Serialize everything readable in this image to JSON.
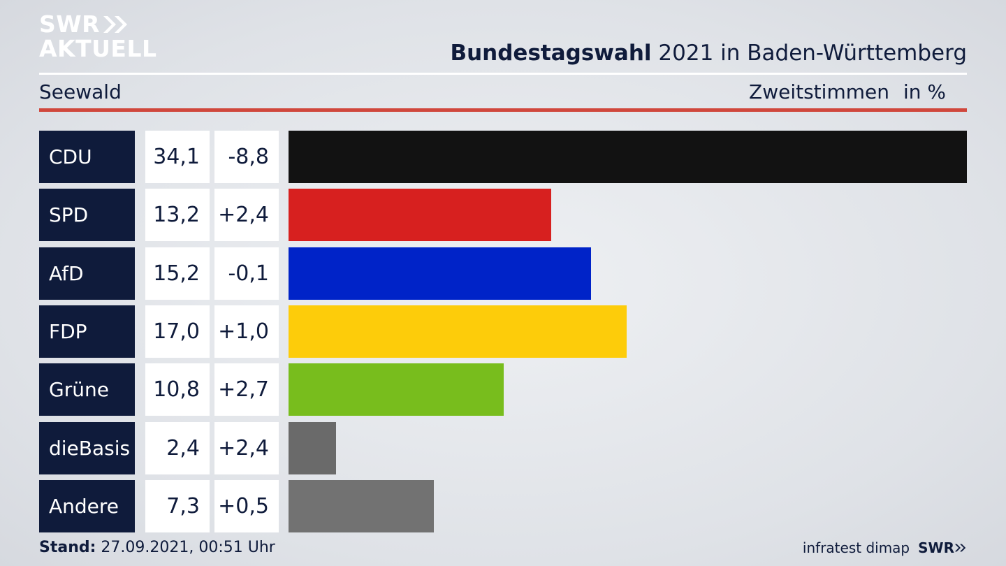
{
  "logo": {
    "line1": "SWR",
    "line2": "AKTUELL"
  },
  "header": {
    "title_bold": "Bundestagswahl",
    "title_rest": " 2021 in Baden-Württemberg",
    "region": "Seewald",
    "metric": "Zweitstimmen",
    "unit": "in %"
  },
  "chart_data": {
    "type": "bar",
    "orientation": "horizontal",
    "categories": [
      "CDU",
      "SPD",
      "AfD",
      "FDP",
      "Grüne",
      "dieBasis",
      "Andere"
    ],
    "values": [
      34.1,
      13.2,
      15.2,
      17.0,
      10.8,
      2.4,
      7.3
    ],
    "value_labels": [
      "34,1",
      "13,2",
      "15,2",
      "17,0",
      "10,8",
      "2,4",
      "7,3"
    ],
    "change_labels": [
      "-8,8",
      "+2,4",
      "-0,1",
      "+1,0",
      "+2,7",
      "+2,4",
      "+0,5"
    ],
    "colors": [
      "#121212",
      "#d7201f",
      "#0023c8",
      "#fdcc0a",
      "#78bd1d",
      "#6a6a6a",
      "#727272"
    ],
    "xlim": [
      0,
      34.1
    ]
  },
  "footer": {
    "stand_label": "Stand:",
    "stand_value": " 27.09.2021, 00:51 Uhr",
    "source": "infratest dimap",
    "brand": "SWR"
  }
}
